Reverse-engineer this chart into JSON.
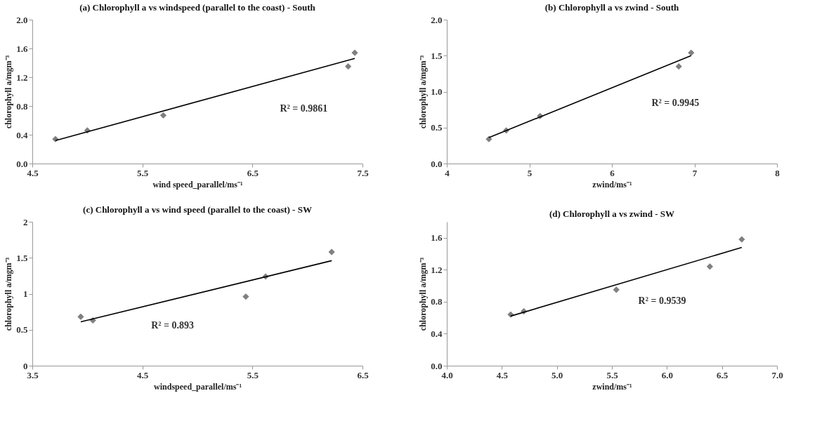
{
  "chart_data": [
    {
      "type": "scatter",
      "title": "(a) Chlorophyll a vs windspeed (parallel to the coast) - South",
      "xlabel": "wind speed_parallel/ms⁻¹",
      "ylabel": "chlorophyll a/mgm⁻³",
      "marker": "diamond",
      "grid": false,
      "xlim": [
        4.5,
        7.5
      ],
      "xticks": [
        4.5,
        5.5,
        6.5,
        7.5
      ],
      "ylim": [
        0,
        2
      ],
      "yticks": [
        {
          "value": 0,
          "label": "0.0"
        },
        0.4,
        0.8,
        1.2,
        1.6,
        {
          "value": 2,
          "label": "2.0"
        }
      ],
      "series": [
        {
          "color": "#808080",
          "x": [
            4.71,
            5.0,
            5.69,
            7.37,
            7.43
          ],
          "values": [
            0.34,
            0.46,
            0.67,
            1.35,
            1.54
          ]
        },
        {
          "type": "line",
          "color": "#000000",
          "marker": "none",
          "x": [
            4.71,
            7.43
          ],
          "values": [
            0.32,
            1.46
          ]
        }
      ],
      "annotations": [
        "R² = 0.9861"
      ]
    },
    {
      "type": "scatter",
      "title": "(b) Chlorophyll a vs zwind - South",
      "xlabel": "zwind/ms⁻¹",
      "ylabel": "chlorophyll a/mgm⁻³",
      "marker": "diamond",
      "grid": false,
      "xlim": [
        4,
        8
      ],
      "xticks": [
        4,
        5,
        6,
        7,
        8
      ],
      "ylim": [
        0,
        2
      ],
      "yticks": [
        {
          "value": 0,
          "label": "0.0"
        },
        0.5,
        {
          "value": 1,
          "label": "1.0"
        },
        1.5,
        {
          "value": 2,
          "label": "2.0"
        }
      ],
      "series": [
        {
          "color": "#808080",
          "x": [
            4.51,
            4.72,
            5.13,
            6.81,
            6.96
          ],
          "values": [
            0.34,
            0.46,
            0.66,
            1.35,
            1.54
          ]
        },
        {
          "type": "line",
          "color": "#000000",
          "marker": "none",
          "x": [
            4.51,
            6.96
          ],
          "values": [
            0.36,
            1.5
          ]
        }
      ],
      "annotations": [
        "R² = 0.9945"
      ]
    },
    {
      "type": "scatter",
      "title": "(c) Chlorophyll a vs wind speed (parallel to the coast) - SW",
      "xlabel": "windspeed_parallel/ms⁻¹",
      "ylabel": "chlorophyll a/mgm⁻³",
      "marker": "diamond",
      "grid": false,
      "xlim": [
        3.5,
        6.5
      ],
      "xticks": [
        3.5,
        4.5,
        5.5,
        6.5
      ],
      "ylim": [
        0,
        2
      ],
      "yticks": [
        0,
        0.5,
        1,
        1.5,
        2
      ],
      "series": [
        {
          "color": "#808080",
          "x": [
            3.94,
            4.05,
            5.44,
            5.62,
            6.22
          ],
          "values": [
            0.68,
            0.63,
            0.96,
            1.24,
            1.58
          ]
        },
        {
          "type": "line",
          "color": "#000000",
          "marker": "none",
          "x": [
            3.94,
            6.22
          ],
          "values": [
            0.61,
            1.46
          ]
        }
      ],
      "annotations": [
        "R² = 0.893"
      ]
    },
    {
      "type": "scatter",
      "title": "(d) Chlorophyll a vs zwind - SW",
      "xlabel": "zwind/ms⁻¹",
      "ylabel": "chlorophyll a/mgm⁻³",
      "marker": "diamond",
      "grid": false,
      "xlim": [
        4,
        7
      ],
      "xticks": [
        {
          "value": 4,
          "label": "4.0"
        },
        4.5,
        {
          "value": 5,
          "label": "5.0"
        },
        5.5,
        {
          "value": 6,
          "label": "6.0"
        },
        6.5,
        {
          "value": 7,
          "label": "7.0"
        }
      ],
      "ylim": [
        0,
        1.8
      ],
      "yticks": [
        {
          "value": 0,
          "label": "0.0"
        },
        0.4,
        0.8,
        1.2,
        1.6
      ],
      "series": [
        {
          "color": "#808080",
          "x": [
            4.58,
            4.7,
            5.54,
            6.39,
            6.68
          ],
          "values": [
            0.64,
            0.68,
            0.95,
            1.24,
            1.58
          ]
        },
        {
          "type": "line",
          "color": "#000000",
          "marker": "none",
          "x": [
            4.58,
            6.68
          ],
          "values": [
            0.62,
            1.48
          ]
        }
      ],
      "annotations": [
        "R² = 0.9539"
      ]
    }
  ]
}
